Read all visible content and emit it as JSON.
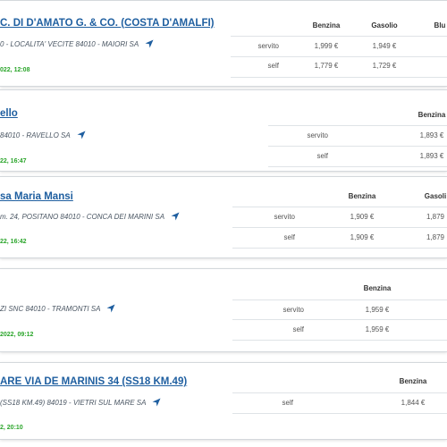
{
  "cards": [
    {
      "title": "C. DI D'AMATO G. & CO. (COSTA D'AMALFI)",
      "address": "0 - LOCALITA' VECITE 84010 - MAIORI SA",
      "updated": "022, 12:08",
      "table": {
        "headers": [
          "Benzina",
          "Gasolio",
          "Blu"
        ],
        "rows": [
          {
            "label": "servito",
            "prices": [
              "1,999 €",
              "1,949 €"
            ]
          },
          {
            "label": "self",
            "prices": [
              "1,779 €",
              "1,729 €"
            ]
          }
        ]
      }
    },
    {
      "title": "ello",
      "address": "84010 - RAVELLO SA",
      "updated": "22, 16:47",
      "table": {
        "headers": [
          "Benzina"
        ],
        "rows": [
          {
            "label": "servito",
            "prices": [
              "1,893 €"
            ]
          },
          {
            "label": "self",
            "prices": [
              "1,893 €"
            ]
          }
        ]
      }
    },
    {
      "title": "sa Maria Mansi",
      "address": "m. 24, POSITANO 84010 - CONCA DEI MARINI SA",
      "updated": "22, 16:42",
      "table": {
        "headers": [
          "Benzina",
          "Gasoli"
        ],
        "rows": [
          {
            "label": "servito",
            "prices": [
              "1,909 €",
              "1,879"
            ]
          },
          {
            "label": "self",
            "prices": [
              "1,909 €",
              "1,879"
            ]
          }
        ]
      }
    },
    {
      "address": "ZI SNC 84010 - TRAMONTI SA",
      "updated": "2022, 09:12",
      "table": {
        "headers": [
          "Benzina"
        ],
        "rows": [
          {
            "label": "servito",
            "prices": [
              "1,959 €"
            ]
          },
          {
            "label": "self",
            "prices": [
              "1,959 €"
            ]
          }
        ]
      }
    },
    {
      "title": "ARE VIA DE MARINIS 34 (SS18 KM.49)",
      "address": "(SS18 KM.49) 84019 - VIETRI SUL MARE SA",
      "updated": "2, 20:10",
      "table": {
        "headers": [
          "Benzina"
        ],
        "rows": [
          {
            "label": "self",
            "prices": [
              "1,844 €"
            ]
          }
        ]
      }
    }
  ]
}
